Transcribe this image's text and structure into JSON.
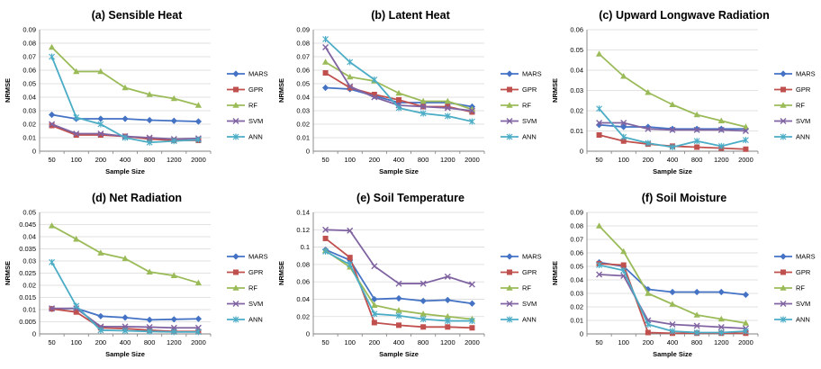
{
  "colors": {
    "MARS": "#4472C4",
    "GPR": "#C0504D",
    "RF": "#9BBB59",
    "SVM": "#8064A2",
    "ANN": "#4BACC6",
    "grid": "#D9D9D9",
    "axis": "#808080"
  },
  "markers": {
    "MARS": "diamond",
    "GPR": "square",
    "RF": "triangle",
    "SVM": "x",
    "ANN": "star"
  },
  "chart_data": [
    {
      "type": "line",
      "title": "(a) Sensible Heat",
      "xlabel": "Sample Size",
      "ylabel": "NRMSE",
      "categories": [
        "50",
        "100",
        "200",
        "400",
        "800",
        "1200",
        "2000"
      ],
      "yticks": [
        "0",
        "0.01",
        "0.02",
        "0.03",
        "0.04",
        "0.05",
        "0.06",
        "0.07",
        "0.08",
        "0.09"
      ],
      "ylim": [
        0,
        0.09
      ],
      "grid": true,
      "legend": "right",
      "series": [
        {
          "name": "MARS",
          "values": [
            0.027,
            0.024,
            0.024,
            0.024,
            0.023,
            0.0225,
            0.022
          ]
        },
        {
          "name": "GPR",
          "values": [
            0.019,
            0.012,
            0.012,
            0.011,
            0.009,
            0.008,
            0.008
          ]
        },
        {
          "name": "RF",
          "values": [
            0.077,
            0.059,
            0.059,
            0.047,
            0.042,
            0.039,
            0.034
          ]
        },
        {
          "name": "SVM",
          "values": [
            0.02,
            0.013,
            0.013,
            0.011,
            0.01,
            0.009,
            0.0095
          ]
        },
        {
          "name": "ANN",
          "values": [
            0.07,
            0.025,
            0.02,
            0.01,
            0.0065,
            0.0075,
            0.0085
          ]
        }
      ]
    },
    {
      "type": "line",
      "title": "(b) Latent Heat",
      "xlabel": "Sample Size",
      "ylabel": "NRMSE",
      "categories": [
        "50",
        "100",
        "200",
        "400",
        "800",
        "1200",
        "2000"
      ],
      "yticks": [
        "0",
        "0.01",
        "0.02",
        "0.03",
        "0.04",
        "0.05",
        "0.06",
        "0.07",
        "0.08",
        "0.09"
      ],
      "ylim": [
        0,
        0.09
      ],
      "grid": true,
      "legend": "right",
      "series": [
        {
          "name": "MARS",
          "values": [
            0.047,
            0.046,
            0.041,
            0.036,
            0.036,
            0.036,
            0.033
          ]
        },
        {
          "name": "GPR",
          "values": [
            0.058,
            0.047,
            0.042,
            0.038,
            0.033,
            0.033,
            0.029
          ]
        },
        {
          "name": "RF",
          "values": [
            0.066,
            0.055,
            0.052,
            0.043,
            0.037,
            0.037,
            0.031
          ]
        },
        {
          "name": "SVM",
          "values": [
            0.077,
            0.048,
            0.04,
            0.034,
            0.033,
            0.032,
            0.03
          ]
        },
        {
          "name": "ANN",
          "values": [
            0.083,
            0.066,
            0.053,
            0.032,
            0.028,
            0.026,
            0.022
          ]
        }
      ]
    },
    {
      "type": "line",
      "title": "(c) Upward Longwave Radiation",
      "xlabel": "Sample Size",
      "ylabel": "NRMSE",
      "categories": [
        "50",
        "100",
        "200",
        "400",
        "800",
        "1200",
        "2000"
      ],
      "yticks": [
        "0",
        "0.01",
        "0.02",
        "0.03",
        "0.04",
        "0.05",
        "0.06"
      ],
      "ylim": [
        0,
        0.06
      ],
      "grid": true,
      "legend": "right",
      "series": [
        {
          "name": "MARS",
          "values": [
            0.013,
            0.012,
            0.012,
            0.011,
            0.011,
            0.011,
            0.011
          ]
        },
        {
          "name": "GPR",
          "values": [
            0.008,
            0.005,
            0.0035,
            0.0025,
            0.002,
            0.0015,
            0.001
          ]
        },
        {
          "name": "RF",
          "values": [
            0.048,
            0.037,
            0.029,
            0.023,
            0.018,
            0.015,
            0.012
          ]
        },
        {
          "name": "SVM",
          "values": [
            0.014,
            0.014,
            0.011,
            0.0105,
            0.0105,
            0.0105,
            0.01
          ]
        },
        {
          "name": "ANN",
          "values": [
            0.021,
            0.007,
            0.004,
            0.002,
            0.005,
            0.0025,
            0.0055
          ]
        }
      ]
    },
    {
      "type": "line",
      "title": "(d) Net Radiation",
      "xlabel": "Sample Size",
      "ylabel": "NRMSE",
      "categories": [
        "50",
        "100",
        "200",
        "400",
        "800",
        "1200",
        "2000"
      ],
      "yticks": [
        "0",
        "0.005",
        "0.01",
        "0.015",
        "0.02",
        "0.025",
        "0.03",
        "0.035",
        "0.04",
        "0.045",
        "0.05"
      ],
      "ylim": [
        0,
        0.05
      ],
      "grid": true,
      "legend": "right",
      "series": [
        {
          "name": "MARS",
          "values": [
            0.0103,
            0.0105,
            0.0073,
            0.0067,
            0.0058,
            0.006,
            0.0062
          ]
        },
        {
          "name": "GPR",
          "values": [
            0.0103,
            0.009,
            0.0025,
            0.0022,
            0.0015,
            0.001,
            0.001
          ]
        },
        {
          "name": "RF",
          "values": [
            0.0445,
            0.039,
            0.0333,
            0.031,
            0.0255,
            0.024,
            0.021
          ]
        },
        {
          "name": "SVM",
          "values": [
            0.0105,
            0.0105,
            0.003,
            0.003,
            0.0028,
            0.0025,
            0.0025
          ]
        },
        {
          "name": "ANN",
          "values": [
            0.0295,
            0.0115,
            0.0015,
            0.0013,
            0.001,
            0.0008,
            0.0008
          ]
        }
      ]
    },
    {
      "type": "line",
      "title": "(e) Soil Temperature",
      "xlabel": "Sample Size",
      "ylabel": "NRMSE",
      "categories": [
        "50",
        "100",
        "200",
        "400",
        "800",
        "1200",
        "2000"
      ],
      "yticks": [
        "0",
        "0.02",
        "0.04",
        "0.06",
        "0.08",
        "0.1",
        "0.12",
        "0.14"
      ],
      "ylim": [
        0,
        0.14
      ],
      "grid": true,
      "legend": "right",
      "series": [
        {
          "name": "MARS",
          "values": [
            0.097,
            0.085,
            0.04,
            0.041,
            0.038,
            0.039,
            0.035
          ]
        },
        {
          "name": "GPR",
          "values": [
            0.11,
            0.088,
            0.013,
            0.01,
            0.008,
            0.008,
            0.007
          ]
        },
        {
          "name": "RF",
          "values": [
            0.096,
            0.077,
            0.033,
            0.027,
            0.023,
            0.02,
            0.017
          ]
        },
        {
          "name": "SVM",
          "values": [
            0.12,
            0.119,
            0.078,
            0.058,
            0.058,
            0.066,
            0.057
          ]
        },
        {
          "name": "ANN",
          "values": [
            0.095,
            0.08,
            0.023,
            0.021,
            0.017,
            0.015,
            0.015
          ]
        }
      ]
    },
    {
      "type": "line",
      "title": "(f) Soil Moisture",
      "xlabel": "Sample Size",
      "ylabel": "NRMSE",
      "categories": [
        "50",
        "100",
        "200",
        "400",
        "800",
        "1200",
        "2000"
      ],
      "yticks": [
        "0",
        "0.01",
        "0.02",
        "0.03",
        "0.04",
        "0.05",
        "0.06",
        "0.07",
        "0.08",
        "0.09"
      ],
      "ylim": [
        0,
        0.09
      ],
      "grid": true,
      "legend": "right",
      "series": [
        {
          "name": "MARS",
          "values": [
            0.053,
            0.05,
            0.033,
            0.031,
            0.031,
            0.031,
            0.029
          ]
        },
        {
          "name": "GPR",
          "values": [
            0.052,
            0.051,
            0.001,
            0.0005,
            0.0005,
            0.0005,
            0.0005
          ]
        },
        {
          "name": "RF",
          "values": [
            0.08,
            0.061,
            0.03,
            0.022,
            0.014,
            0.011,
            0.008
          ]
        },
        {
          "name": "SVM",
          "values": [
            0.044,
            0.043,
            0.01,
            0.007,
            0.006,
            0.005,
            0.004
          ]
        },
        {
          "name": "ANN",
          "values": [
            0.051,
            0.047,
            0.007,
            0.002,
            0.001,
            0.001,
            0.002
          ]
        }
      ]
    }
  ]
}
